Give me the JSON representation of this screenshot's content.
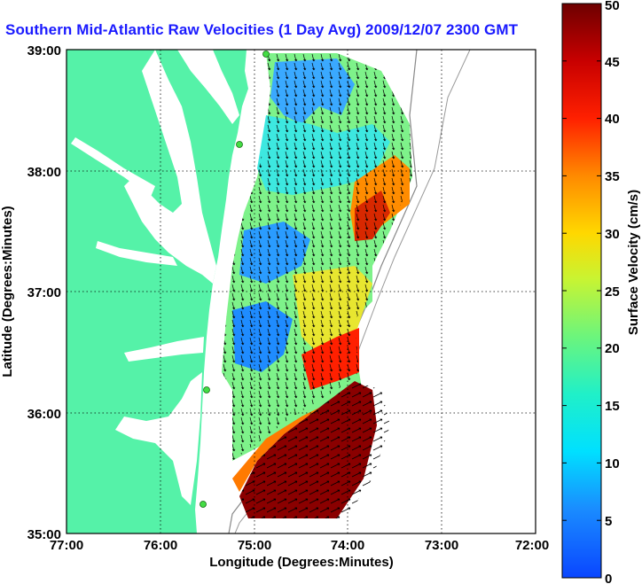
{
  "title": "Southern Mid-Atlantic Raw Velocities (1 Day Avg) 2009/12/07 2300 GMT",
  "xlabel": "Longitude (Degrees:Minutes)",
  "ylabel": "Latitude (Degrees:Minutes)",
  "colorbar_label": "Surface Velocity (cm/s)",
  "x_ticks": [
    "77:00",
    "76:00",
    "75:00",
    "74:00",
    "73:00",
    "72:00"
  ],
  "y_ticks": [
    "39:00",
    "38:00",
    "37:00",
    "36:00",
    "35:00"
  ],
  "colorbar_ticks": [
    "0",
    "5",
    "10",
    "15",
    "20",
    "25",
    "30",
    "35",
    "40",
    "45",
    "50"
  ],
  "colors": {
    "land": "#55f2a8",
    "water": "#ffffff",
    "title": "#1a1aff",
    "grid": "#000000"
  },
  "chart_data": {
    "type": "heatmap",
    "x_range_deg_west": [
      77,
      72
    ],
    "y_range_deg_north": [
      35,
      39
    ],
    "colorbar_range_cms": [
      0,
      50
    ],
    "colormap": "jet",
    "grid": true,
    "overlay": "velocity vectors (arrows)"
  }
}
